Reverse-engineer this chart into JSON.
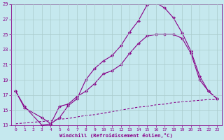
{
  "xlabel": "Windchill (Refroidissement éolien,°C)",
  "bg_color": "#c5e8ee",
  "line_color": "#880088",
  "grid_color": "#aacccc",
  "xlim": [
    -0.5,
    23.5
  ],
  "ylim": [
    13,
    29
  ],
  "xticks": [
    0,
    1,
    2,
    3,
    4,
    5,
    6,
    7,
    8,
    9,
    10,
    11,
    12,
    13,
    14,
    15,
    16,
    17,
    18,
    19,
    20,
    21,
    22,
    23
  ],
  "yticks": [
    13,
    15,
    17,
    19,
    21,
    23,
    25,
    27,
    29
  ],
  "line1_x": [
    0,
    1,
    3,
    4,
    5,
    6,
    7,
    8,
    9,
    10,
    11,
    12,
    13,
    14,
    15,
    16,
    17,
    18,
    19,
    20,
    21,
    22,
    23
  ],
  "line1_y": [
    17.5,
    15.5,
    13.0,
    13.2,
    14.0,
    15.6,
    16.5,
    19.0,
    20.5,
    21.5,
    22.2,
    23.5,
    25.3,
    26.8,
    28.9,
    29.2,
    28.5,
    27.2,
    25.2,
    22.8,
    19.5,
    17.5,
    16.5
  ],
  "line2_x": [
    0,
    1,
    3,
    4,
    5,
    6,
    7,
    8,
    9,
    10,
    11,
    12,
    13,
    14,
    15,
    16,
    17,
    18,
    19,
    20,
    21,
    22,
    23
  ],
  "line2_y": [
    17.5,
    15.3,
    14.0,
    13.2,
    15.5,
    15.8,
    16.8,
    17.5,
    18.5,
    19.8,
    20.2,
    21.0,
    22.5,
    23.8,
    24.8,
    25.0,
    25.0,
    25.0,
    24.5,
    22.5,
    19.0,
    17.5,
    16.5
  ],
  "line3_x": [
    0,
    1,
    2,
    3,
    4,
    5,
    6,
    7,
    8,
    9,
    10,
    11,
    12,
    13,
    14,
    15,
    16,
    17,
    18,
    19,
    20,
    21,
    22,
    23
  ],
  "line3_y": [
    13.2,
    13.3,
    13.4,
    13.5,
    13.6,
    13.8,
    13.9,
    14.1,
    14.3,
    14.4,
    14.6,
    14.8,
    15.0,
    15.2,
    15.4,
    15.5,
    15.7,
    15.8,
    16.0,
    16.1,
    16.2,
    16.3,
    16.4,
    16.4
  ]
}
